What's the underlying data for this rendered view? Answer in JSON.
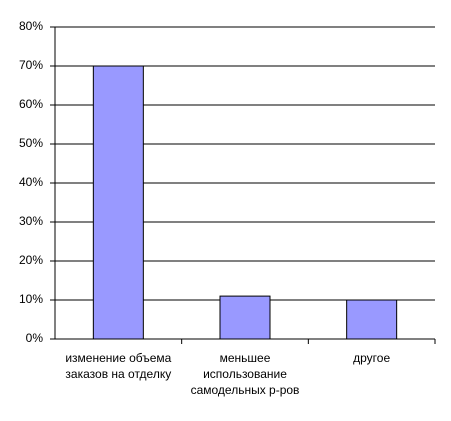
{
  "chart_data": {
    "type": "bar",
    "categories": [
      "изменение объема заказов на отделку",
      "меньшее использование самодельных р-ров",
      "другое"
    ],
    "values": [
      70,
      11,
      10
    ],
    "color": "#9999ff",
    "ylim": [
      0,
      80
    ],
    "yticks": [
      {
        "value": 0,
        "label": "0%"
      },
      {
        "value": 10,
        "label": "10%"
      },
      {
        "value": 20,
        "label": "20%"
      },
      {
        "value": 30,
        "label": "30%"
      },
      {
        "value": 40,
        "label": "40%"
      },
      {
        "value": 50,
        "label": "50%"
      },
      {
        "value": 60,
        "label": "60%"
      },
      {
        "value": 70,
        "label": "70%"
      },
      {
        "value": 80,
        "label": "80%"
      }
    ],
    "grid": true
  }
}
